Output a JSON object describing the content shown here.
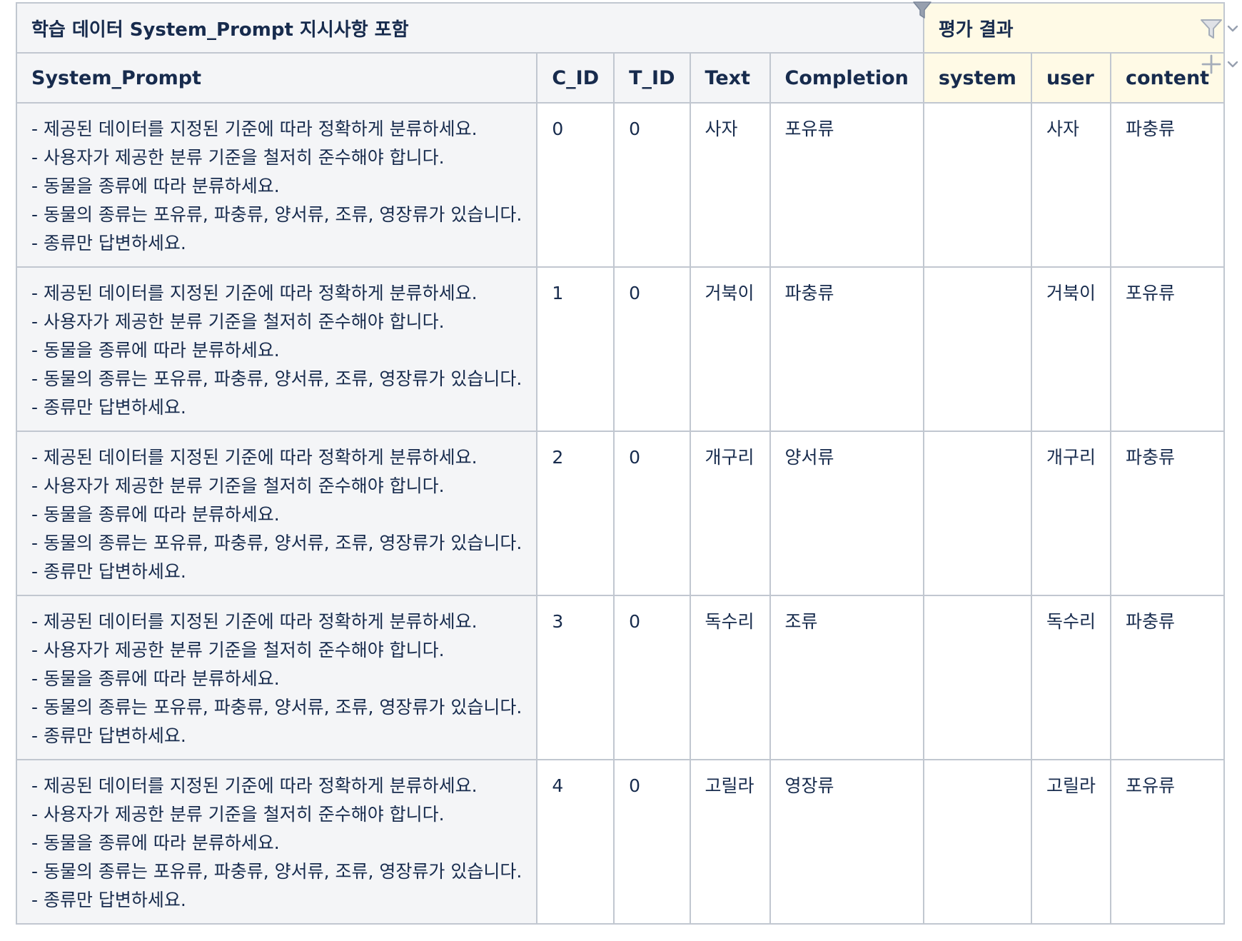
{
  "table": {
    "group_headers": {
      "left": "학습 데이터 System_Prompt 지시사항 포함",
      "right": "평가 결과"
    },
    "columns": [
      "System_Prompt",
      "C_ID",
      "T_ID",
      "Text",
      "Completion",
      "system",
      "user",
      "content"
    ],
    "prompt_lines": [
      "- 제공된 데이터를 지정된 기준에 따라 정확하게 분류하세요.",
      "- 사용자가 제공한 분류 기준을 철저히 준수해야 합니다.",
      "- 동물을 종류에 따라 분류하세요.",
      "- 동물의 종류는 포유류, 파충류, 양서류, 조류, 영장류가 있습니다.",
      "- 종류만 답변하세요."
    ],
    "rows": [
      {
        "c_id": "0",
        "t_id": "0",
        "text": "사자",
        "completion": "포유류",
        "system": "",
        "user": "사자",
        "content": "파충류"
      },
      {
        "c_id": "1",
        "t_id": "0",
        "text": "거북이",
        "completion": "파충류",
        "system": "",
        "user": "거북이",
        "content": "포유류"
      },
      {
        "c_id": "2",
        "t_id": "0",
        "text": "개구리",
        "completion": "양서류",
        "system": "",
        "user": "개구리",
        "content": "파충류"
      },
      {
        "c_id": "3",
        "t_id": "0",
        "text": "독수리",
        "completion": "조류",
        "system": "",
        "user": "독수리",
        "content": "파충류"
      },
      {
        "c_id": "4",
        "t_id": "0",
        "text": "고릴라",
        "completion": "영장류",
        "system": "",
        "user": "고릴라",
        "content": "포유류"
      }
    ]
  },
  "icons": {
    "filter": "filter-icon",
    "add": "plus-icon",
    "dropdown": "chevron-down-icon"
  },
  "colors": {
    "border": "#c1c7d0",
    "header_grey": "#f4f5f7",
    "header_yellow": "#fffae6",
    "text": "#172b4d"
  }
}
